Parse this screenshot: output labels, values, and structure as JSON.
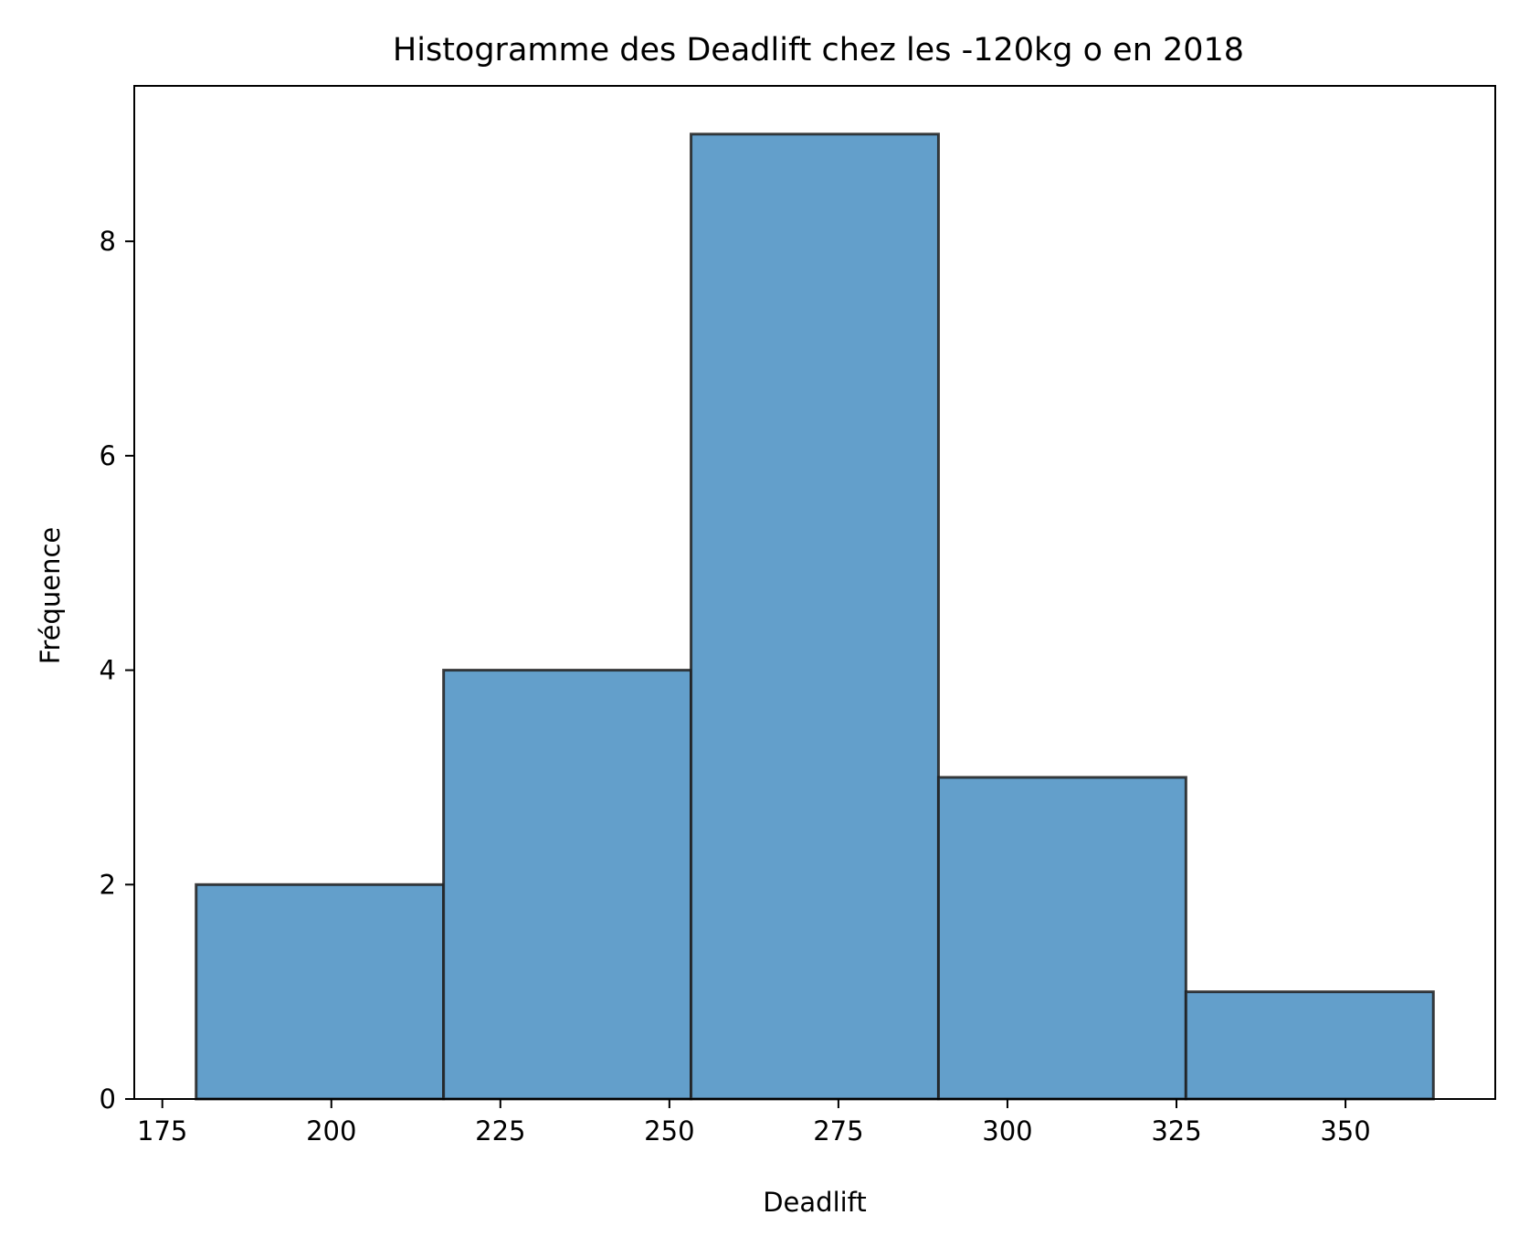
{
  "chart_data": {
    "type": "bar",
    "title": "Histogramme des Deadlift chez les -120kg o en 2018",
    "xlabel": "Deadlift",
    "ylabel": "Fréquence",
    "bins": [
      {
        "start": 180.0,
        "end": 216.6,
        "count": 2
      },
      {
        "start": 216.6,
        "end": 253.2,
        "count": 4
      },
      {
        "start": 253.2,
        "end": 289.8,
        "count": 9
      },
      {
        "start": 289.8,
        "end": 326.4,
        "count": 3
      },
      {
        "start": 326.4,
        "end": 363.0,
        "count": 1
      }
    ],
    "xlim": [
      170.85,
      372.15
    ],
    "ylim": [
      0,
      9.45
    ],
    "xticks": [
      175,
      200,
      225,
      250,
      275,
      300,
      325,
      350
    ],
    "yticks": [
      0,
      2,
      4,
      6,
      8
    ],
    "grid": false,
    "legend": "none",
    "colors": {
      "bar_fill": "#639fcb",
      "bar_edge": "#1f1f1f",
      "axes": "#000000"
    }
  }
}
